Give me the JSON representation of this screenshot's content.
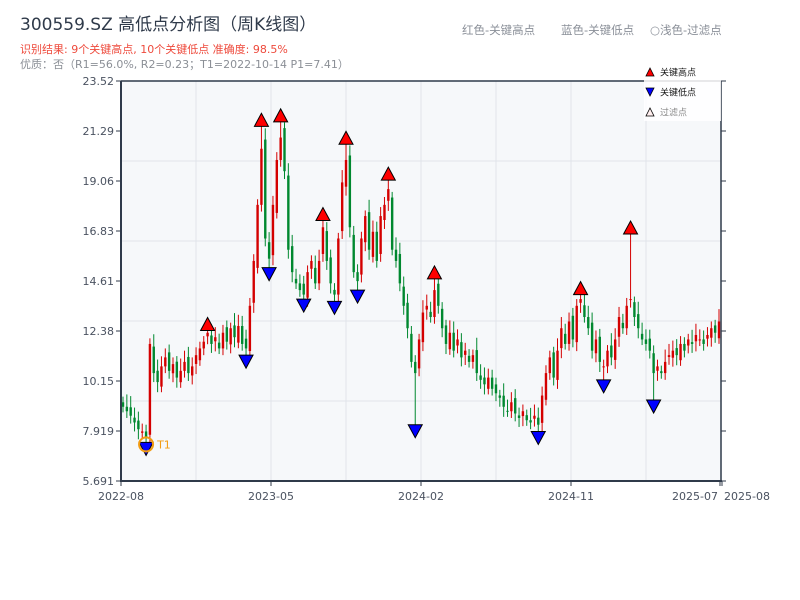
{
  "header": {
    "title": "300559.SZ 高低点分析图（周K线图）",
    "result": "识别结果: 9个关键高点, 10个关键低点   准确度: 98.5%",
    "quality": "优质：否（R1=56.0%, R2=0.23；T1=2022-10-14 P1=7.41）"
  },
  "top_legend": {
    "red": "红色-关键高点",
    "blue": "蓝色-关键低点",
    "light": "○浅色-过滤点"
  },
  "chart_data": {
    "type": "candlestick",
    "title": "300559.SZ 高低点分析图（周K线图）",
    "ylim": [
      5.691,
      23.52
    ],
    "y_ticks": [
      "5.691",
      "7.919",
      "10.15",
      "12.38",
      "14.61",
      "16.83",
      "19.06",
      "21.29",
      "23.52"
    ],
    "x_ticks": [
      "2022-08",
      "2023-05",
      "2024-02",
      "2024-11",
      "2025-07",
      "2025-08"
    ],
    "grid": true,
    "legend_placement": "top-right",
    "legend": [
      {
        "label": "关键高点",
        "color": "#ff0000",
        "shape": "triangle-up"
      },
      {
        "label": "关键低点",
        "color": "#0000ff",
        "shape": "triangle-down"
      },
      {
        "label": "过滤点",
        "color": "#ffeeee",
        "shape": "triangle-up"
      }
    ],
    "colors": {
      "up": "#d40000",
      "down": "#00882f",
      "high": "#ff0000",
      "low": "#0000ff",
      "t1": "#f39c12"
    },
    "weekly_close": [
      9.0,
      8.8,
      8.6,
      8.3,
      8.0,
      7.9,
      7.6,
      11.8,
      10.5,
      10.1,
      10.8,
      11.2,
      10.6,
      10.9,
      10.3,
      10.6,
      11.0,
      10.5,
      10.8,
      11.3,
      11.6,
      11.9,
      12.3,
      11.8,
      12.1,
      11.6,
      12.3,
      11.9,
      12.5,
      12.1,
      12.6,
      11.8,
      11.6,
      13.5,
      15.5,
      18.0,
      20.5,
      16.5,
      15.6,
      18.0,
      20.0,
      21.0,
      19.5,
      16.0,
      15.0,
      14.5,
      14.2,
      14.0,
      15.0,
      15.5,
      14.5,
      15.5,
      17.0,
      15.5,
      14.5,
      14.0,
      16.5,
      19.0,
      20.0,
      17.0,
      15.0,
      14.6,
      16.5,
      17.5,
      16.0,
      16.8,
      15.5,
      17.5,
      18.0,
      18.7,
      16.0,
      15.5,
      14.5,
      13.5,
      12.5,
      11.0,
      10.5,
      12.0,
      13.2,
      13.5,
      13.0,
      14.2,
      13.5,
      12.5,
      11.8,
      12.3,
      11.5,
      12.0,
      11.2,
      11.5,
      11.0,
      11.3,
      10.5,
      10.2,
      10.0,
      10.3,
      9.8,
      9.6,
      9.4,
      9.0,
      8.8,
      9.2,
      8.7,
      8.5,
      8.8,
      8.4,
      8.3,
      8.6,
      8.2,
      9.5,
      10.5,
      11.2,
      10.3,
      11.5,
      12.5,
      11.8,
      12.8,
      12.0,
      13.5,
      13.8,
      13.0,
      12.5,
      11.5,
      12.0,
      11.0,
      10.8,
      11.5,
      11.2,
      12.0,
      13.0,
      12.5,
      13.5,
      13.8,
      13.0,
      12.5,
      12.0,
      11.8,
      11.5,
      10.5,
      10.8,
      10.5,
      11.0,
      11.3,
      11.5,
      11.3,
      11.8,
      11.5,
      12.0,
      11.8,
      12.2,
      12.0,
      11.8,
      12.2,
      12.5,
      12.3,
      12.8
    ],
    "key_highs": [
      {
        "week": 22,
        "price": 12.4
      },
      {
        "week": 36,
        "price": 21.5
      },
      {
        "week": 41,
        "price": 21.7
      },
      {
        "week": 52,
        "price": 17.3
      },
      {
        "week": 58,
        "price": 20.7
      },
      {
        "week": 69,
        "price": 19.1
      },
      {
        "week": 81,
        "price": 14.7
      },
      {
        "week": 119,
        "price": 14.0
      },
      {
        "week": 132,
        "price": 16.7
      }
    ],
    "key_lows": [
      {
        "week": 6,
        "price": 7.41
      },
      {
        "week": 32,
        "price": 11.3
      },
      {
        "week": 38,
        "price": 15.2
      },
      {
        "week": 47,
        "price": 13.8
      },
      {
        "week": 55,
        "price": 13.7
      },
      {
        "week": 61,
        "price": 14.2
      },
      {
        "week": 76,
        "price": 8.2
      },
      {
        "week": 108,
        "price": 7.9
      },
      {
        "week": 125,
        "price": 10.2
      },
      {
        "week": 138,
        "price": 9.3
      }
    ],
    "annotation": {
      "label": "T1",
      "week": 6,
      "price": 7.41
    }
  }
}
